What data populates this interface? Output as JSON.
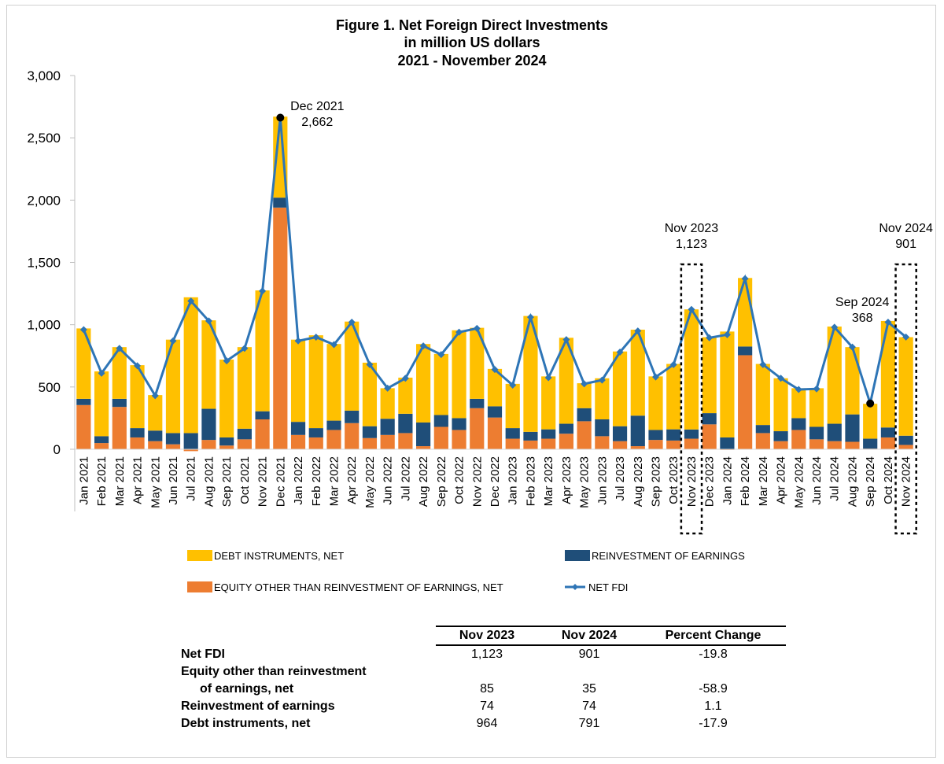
{
  "chart_data": {
    "type": "bar",
    "stacked": true,
    "title": "Figure 1. Net Foreign Direct Investments",
    "subtitle_lines": [
      "in million US dollars",
      "2021 - November 2024"
    ],
    "ylim": [
      0,
      3000
    ],
    "yticks": [
      "0",
      "500",
      "1,000",
      "1,500",
      "2,000",
      "2,500",
      "3,000"
    ],
    "ytick_values": [
      0,
      500,
      1000,
      1500,
      2000,
      2500,
      3000
    ],
    "grid": false,
    "legend_position": "bottom",
    "colors": {
      "equity": "#ED7D31",
      "reinvestment": "#1F4E79",
      "debt": "#FFC000",
      "net": "#2E75B6"
    },
    "categories": [
      "Jan 2021",
      "Feb 2021",
      "Mar 2021",
      "Apr 2021",
      "May 2021",
      "Jun 2021",
      "Jul 2021",
      "Aug 2021",
      "Sep 2021",
      "Oct 2021",
      "Nov 2021",
      "Dec 2021",
      "Jan 2022",
      "Feb 2022",
      "Mar 2022",
      "Apr 2022",
      "May 2022",
      "Jun 2022",
      "Jul 2022",
      "Aug 2022",
      "Sep 2022",
      "Oct 2022",
      "Nov 2022",
      "Dec 2022",
      "Jan 2023",
      "Feb 2023",
      "Mar 2023",
      "Apr 2023",
      "May 2023",
      "Jun 2023",
      "Jul 2023",
      "Aug 2023",
      "Sep 2023",
      "Oct 2023",
      "Nov 2023",
      "Dec 2023",
      "Jan 2024",
      "Feb 2024",
      "Mar 2024",
      "Apr 2024",
      "May 2024",
      "Jun 2024",
      "Jul 2024",
      "Aug 2024",
      "Sep 2024",
      "Oct 2024",
      "Nov 2024"
    ],
    "series": [
      {
        "key": "equity",
        "name": "EQUITY OTHER THAN REINVESTMENT OF EARNINGS, NET",
        "values": [
          355,
          50,
          340,
          95,
          65,
          40,
          -15,
          75,
          30,
          80,
          240,
          1940,
          115,
          95,
          155,
          210,
          90,
          115,
          130,
          25,
          180,
          155,
          330,
          255,
          85,
          70,
          85,
          125,
          225,
          105,
          65,
          25,
          75,
          70,
          85,
          200,
          -5,
          755,
          130,
          65,
          155,
          80,
          65,
          60,
          5,
          95,
          35
        ]
      },
      {
        "key": "reinvestment",
        "name": "REINVESTMENT OF EARNINGS",
        "values": [
          50,
          55,
          65,
          75,
          85,
          90,
          130,
          250,
          65,
          85,
          65,
          80,
          105,
          75,
          75,
          100,
          95,
          130,
          155,
          190,
          95,
          95,
          75,
          90,
          85,
          70,
          75,
          80,
          105,
          135,
          120,
          245,
          80,
          90,
          74,
          90,
          95,
          70,
          65,
          80,
          95,
          100,
          140,
          220,
          80,
          80,
          74
        ]
      },
      {
        "key": "debt",
        "name": "DEBT INSTRUMENTS, NET",
        "values": [
          565,
          520,
          415,
          505,
          285,
          750,
          1090,
          710,
          625,
          655,
          970,
          650,
          660,
          745,
          615,
          715,
          510,
          245,
          290,
          630,
          490,
          705,
          570,
          300,
          355,
          930,
          425,
          690,
          200,
          330,
          600,
          690,
          430,
          525,
          964,
          610,
          850,
          550,
          490,
          425,
          240,
          310,
          780,
          540,
          280,
          855,
          791
        ]
      },
      {
        "key": "net",
        "name": "NET FDI",
        "type": "line",
        "values": [
          960,
          610,
          810,
          670,
          430,
          870,
          1190,
          1030,
          710,
          810,
          1270,
          2662,
          870,
          900,
          840,
          1020,
          680,
          490,
          570,
          830,
          760,
          940,
          970,
          640,
          515,
          1060,
          575,
          880,
          525,
          555,
          780,
          950,
          580,
          680,
          1123,
          895,
          920,
          1370,
          680,
          570,
          480,
          485,
          980,
          820,
          368,
          1020,
          901
        ]
      }
    ],
    "legend": [
      {
        "key": "debt",
        "label": "DEBT INSTRUMENTS, NET"
      },
      {
        "key": "reinvestment",
        "label": "REINVESTMENT OF EARNINGS"
      },
      {
        "key": "equity",
        "label": "EQUITY OTHER THAN REINVESTMENT OF EARNINGS, NET"
      },
      {
        "key": "net",
        "label": "NET FDI"
      }
    ],
    "annotations": [
      {
        "index": 11,
        "lines": [
          "Dec 2021",
          "2,662"
        ],
        "marker": true,
        "box": false
      },
      {
        "index": 34,
        "lines": [
          "Nov 2023",
          "1,123"
        ],
        "marker": false,
        "box": true
      },
      {
        "index": 44,
        "lines": [
          "Sep 2024",
          "368"
        ],
        "marker": true,
        "box": false
      },
      {
        "index": 46,
        "lines": [
          "Nov 2024",
          "901"
        ],
        "marker": false,
        "box": true
      }
    ]
  },
  "table": {
    "headers": [
      "",
      "Nov 2023",
      "Nov 2024",
      "Percent Change"
    ],
    "rows": [
      {
        "label": "Net FDI",
        "v1": "1,123",
        "v2": "901",
        "v3": "-19.8"
      },
      {
        "label": "Equity other than reinvestment",
        "v1": "",
        "v2": "",
        "v3": ""
      },
      {
        "label": "of earnings, net",
        "indent": true,
        "v1": "85",
        "v2": "35",
        "v3": "-58.9"
      },
      {
        "label": "Reinvestment of earnings",
        "v1": "74",
        "v2": "74",
        "v3": "1.1"
      },
      {
        "label": "Debt instruments, net",
        "v1": "964",
        "v2": "791",
        "v3": "-17.9"
      }
    ]
  }
}
